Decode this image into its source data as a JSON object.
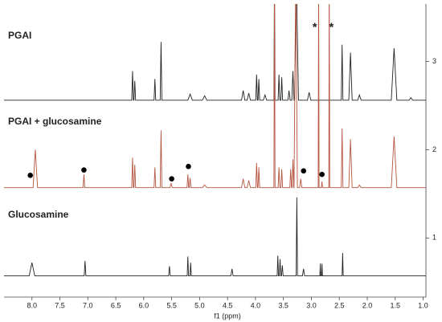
{
  "chart_data": {
    "type": "line",
    "x_label": "f1 (ppm)",
    "xlim": [
      8.5,
      0.95
    ],
    "xticks": [
      {
        "value": 8,
        "label": "8.0"
      },
      {
        "value": 7.5,
        "label": "7.5"
      },
      {
        "value": 7,
        "label": "7.0"
      },
      {
        "value": 6.5,
        "label": "6.5"
      },
      {
        "value": 6,
        "label": "6.0"
      },
      {
        "value": 5.5,
        "label": "5.5"
      },
      {
        "value": 5,
        "label": "5.0"
      },
      {
        "value": 4.5,
        "label": "4.5"
      },
      {
        "value": 4,
        "label": "4.0"
      },
      {
        "value": 3.5,
        "label": "3.5"
      },
      {
        "value": 3,
        "label": "3.0"
      },
      {
        "value": 2.5,
        "label": "2.5"
      },
      {
        "value": 2,
        "label": "2.0"
      },
      {
        "value": 1.5,
        "label": "1.5"
      },
      {
        "value": 1,
        "label": "1.0"
      }
    ],
    "ylim": [
      0.33,
      3.65
    ],
    "yticks": [
      1,
      2,
      3
    ],
    "series": [
      {
        "name": "PGAI",
        "color": "#222222",
        "x": [
          8.5,
          6.215,
          6.2,
          6.185,
          6.175,
          6.16,
          6.145,
          5.815,
          5.8,
          5.785,
          5.705,
          5.69,
          5.675,
          5.21,
          5.17,
          5.13,
          4.95,
          4.91,
          4.87,
          4.25,
          4.22,
          4.19,
          4.15,
          4.12,
          4.09,
          3.995,
          3.98,
          3.965,
          3.955,
          3.94,
          3.925,
          3.86,
          3.83,
          3.8,
          3.67,
          3.66,
          3.65,
          3.595,
          3.58,
          3.565,
          3.545,
          3.53,
          3.515,
          3.42,
          3.4,
          3.38,
          3.35,
          3.33,
          3.31,
          3.3,
          3.27,
          3.23,
          3.07,
          3.04,
          3.01,
          2.465,
          2.45,
          2.435,
          2.33,
          2.3,
          2.27,
          2.17,
          2.14,
          2.11,
          1.57,
          1.52,
          1.47,
          1.25,
          1.22,
          1.19,
          0.95
        ],
        "values": [
          2.56,
          2.56,
          2.89,
          2.56,
          2.56,
          2.78,
          2.56,
          2.56,
          2.8,
          2.56,
          2.56,
          3.22,
          2.56,
          2.56,
          2.63,
          2.56,
          2.56,
          2.61,
          2.56,
          2.56,
          2.67,
          2.56,
          2.56,
          2.64,
          2.56,
          2.56,
          2.85,
          2.56,
          2.56,
          2.8,
          2.56,
          2.56,
          2.62,
          2.56,
          2.56,
          4.0,
          2.56,
          2.56,
          2.85,
          2.56,
          2.56,
          2.82,
          2.56,
          2.56,
          2.67,
          2.56,
          2.56,
          2.89,
          2.56,
          2.56,
          4.0,
          2.56,
          2.56,
          2.65,
          2.56,
          2.56,
          3.19,
          2.56,
          2.56,
          3.1,
          2.56,
          2.56,
          2.62,
          2.56,
          2.56,
          3.15,
          2.56,
          2.56,
          2.59,
          2.56,
          2.56
        ]
      },
      {
        "name": "PGAI + glucosamine",
        "color": "#b5543f",
        "x": [
          8.5,
          7.98,
          7.94,
          7.9,
          7.085,
          7.07,
          7.055,
          6.215,
          6.2,
          6.185,
          6.175,
          6.16,
          6.145,
          5.815,
          5.8,
          5.785,
          5.705,
          5.69,
          5.675,
          5.53,
          5.51,
          5.49,
          5.225,
          5.21,
          5.195,
          5.185,
          5.17,
          5.155,
          4.95,
          4.91,
          4.87,
          4.25,
          4.22,
          4.19,
          4.15,
          4.12,
          4.09,
          3.995,
          3.98,
          3.965,
          3.955,
          3.94,
          3.925,
          3.67,
          3.66,
          3.65,
          3.595,
          3.58,
          3.565,
          3.545,
          3.53,
          3.515,
          3.385,
          3.37,
          3.355,
          3.345,
          3.33,
          3.315,
          3.31,
          3.28,
          3.25,
          3.21,
          3.19,
          3.17,
          2.878,
          2.87,
          2.862,
          2.82,
          2.81,
          2.8,
          2.688,
          2.68,
          2.672,
          2.465,
          2.45,
          2.435,
          2.33,
          2.3,
          2.27,
          2.17,
          2.14,
          2.11,
          1.57,
          1.52,
          1.47,
          0.95
        ],
        "values": [
          1.57,
          1.57,
          2.0,
          1.57,
          1.57,
          1.72,
          1.57,
          1.57,
          1.91,
          1.57,
          1.57,
          1.83,
          1.57,
          1.57,
          1.8,
          1.57,
          1.57,
          2.22,
          1.57,
          1.57,
          1.62,
          1.57,
          1.57,
          1.72,
          1.57,
          1.57,
          1.68,
          1.57,
          1.57,
          1.6,
          1.57,
          1.57,
          1.67,
          1.57,
          1.57,
          1.65,
          1.57,
          1.57,
          1.85,
          1.57,
          1.57,
          1.8,
          1.57,
          1.57,
          4.0,
          1.57,
          1.57,
          1.8,
          1.57,
          1.57,
          1.78,
          1.57,
          1.57,
          1.78,
          1.57,
          1.57,
          1.89,
          1.57,
          1.57,
          4.0,
          1.57,
          1.57,
          1.67,
          1.57,
          1.57,
          4.0,
          1.57,
          1.57,
          1.64,
          1.57,
          1.57,
          4.0,
          1.57,
          1.57,
          2.24,
          1.57,
          1.57,
          2.12,
          1.57,
          1.57,
          1.6,
          1.57,
          1.57,
          2.15,
          1.57,
          1.57
        ]
      },
      {
        "name": "Glucosamine",
        "color": "#222222",
        "x": [
          8.5,
          8.05,
          8.0,
          7.95,
          7.065,
          7.05,
          7.035,
          5.555,
          5.54,
          5.525,
          5.222,
          5.21,
          5.198,
          5.172,
          5.16,
          5.148,
          4.44,
          4.42,
          4.4,
          3.612,
          3.6,
          3.588,
          3.572,
          3.56,
          3.548,
          3.535,
          3.52,
          3.505,
          3.272,
          3.26,
          3.248,
          3.16,
          3.14,
          3.12,
          2.848,
          2.84,
          2.832,
          2.818,
          2.81,
          2.802,
          2.45,
          2.44,
          2.43,
          0.95
        ],
        "values": [
          0.57,
          0.57,
          0.72,
          0.57,
          0.57,
          0.74,
          0.57,
          0.57,
          0.68,
          0.57,
          0.57,
          0.79,
          0.57,
          0.57,
          0.72,
          0.57,
          0.57,
          0.65,
          0.57,
          0.57,
          0.8,
          0.57,
          0.57,
          0.76,
          0.57,
          0.57,
          0.69,
          0.57,
          0.57,
          1.46,
          0.57,
          0.57,
          0.65,
          0.57,
          0.57,
          0.71,
          0.57,
          0.57,
          0.71,
          0.57,
          0.57,
          0.83,
          0.57,
          0.57
        ]
      }
    ],
    "markers": {
      "color": "#000000",
      "x": [
        8.03,
        7.07,
        5.5,
        5.2,
        3.14,
        2.81
      ],
      "values": [
        1.71,
        1.77,
        1.67,
        1.81,
        1.76,
        1.72
      ]
    },
    "asterisks": {
      "labels": [
        "*",
        "*"
      ],
      "x": [
        2.94,
        2.64
      ],
      "y": [
        3.41,
        3.41
      ]
    }
  }
}
